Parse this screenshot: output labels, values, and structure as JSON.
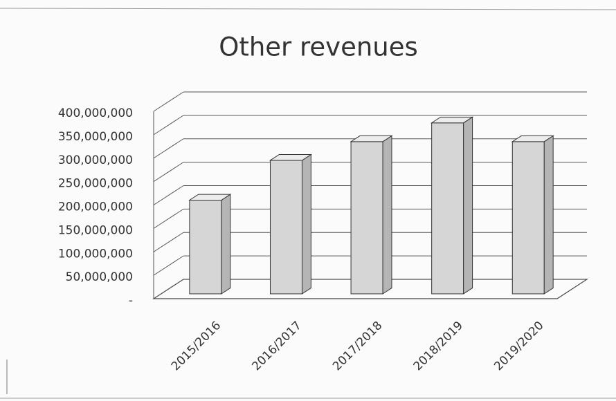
{
  "chart_data": {
    "type": "bar3d",
    "title": "Other revenues",
    "categories": [
      "2015/2016",
      "2016/2017",
      "2017/2018",
      "2018/2019",
      "2019/2020"
    ],
    "values": [
      200000000,
      285000000,
      325000000,
      365000000,
      325000000
    ],
    "color": "#d6d6d6",
    "ylim": [
      0,
      400000000
    ],
    "yticks": [
      {
        "value": 0,
        "label": "-"
      },
      {
        "value": 50000000,
        "label": "50,000,000"
      },
      {
        "value": 100000000,
        "label": "100,000,000"
      },
      {
        "value": 150000000,
        "label": "150,000,000"
      },
      {
        "value": 200000000,
        "label": "200,000,000"
      },
      {
        "value": 250000000,
        "label": "250,000,000"
      },
      {
        "value": 300000000,
        "label": "300,000,000"
      },
      {
        "value": 350000000,
        "label": "350,000,000"
      },
      {
        "value": 400000000,
        "label": "400,000,000"
      }
    ],
    "grid": true
  }
}
